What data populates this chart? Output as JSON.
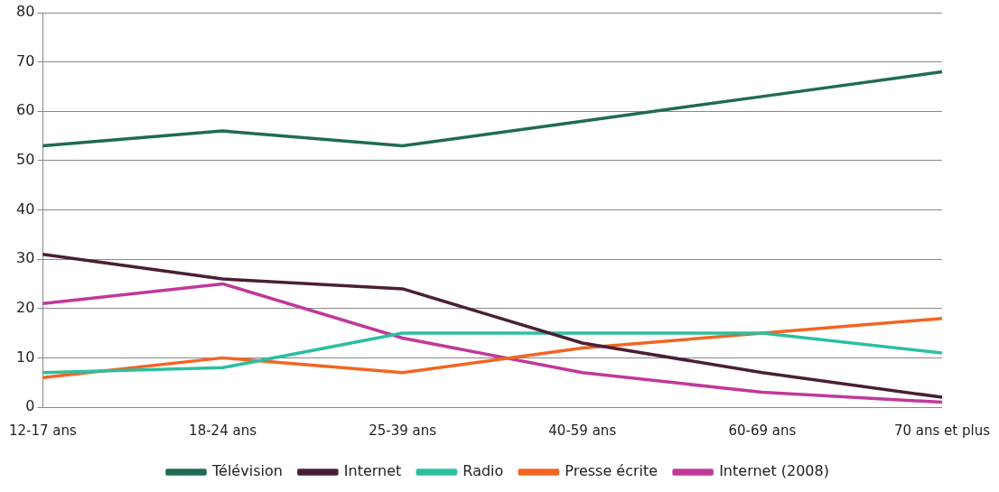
{
  "chart_data": {
    "type": "line",
    "categories": [
      "12-17 ans",
      "18-24 ans",
      "25-39 ans",
      "40-59 ans",
      "60-69 ans",
      "70 ans et plus"
    ],
    "series": [
      {
        "name": "Télévision",
        "color": "#1f6b55",
        "values": [
          53,
          56,
          53,
          58,
          63,
          68
        ]
      },
      {
        "name": "Internet",
        "color": "#4a1f35",
        "values": [
          31,
          26,
          24,
          13,
          7,
          2
        ]
      },
      {
        "name": "Radio",
        "color": "#2bbfa0",
        "values": [
          7,
          8,
          15,
          15,
          15,
          11
        ]
      },
      {
        "name": "Presse écrite",
        "color": "#f26522",
        "values": [
          6,
          10,
          7,
          12,
          15,
          18
        ]
      },
      {
        "name": "Internet (2008)",
        "color": "#c0399a",
        "values": [
          21,
          25,
          14,
          7,
          3,
          1
        ]
      }
    ],
    "ylim": [
      0,
      80
    ],
    "yticks": [
      0,
      10,
      20,
      30,
      40,
      50,
      60,
      70,
      80
    ],
    "grid": "y",
    "legend": "bottom",
    "marker": "none",
    "line_style": "solid"
  }
}
